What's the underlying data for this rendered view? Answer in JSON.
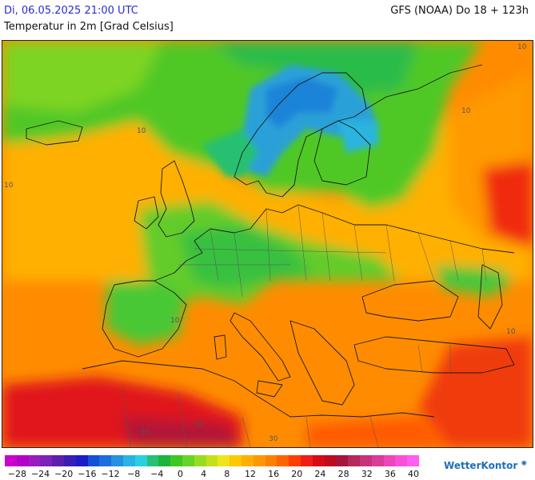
{
  "header": {
    "date": "Di, 06.05.2025 21:00 UTC",
    "model": "GFS (NOAA) Do 18 + 123h",
    "parameter": "Temperatur in 2m [Grad Celsius]"
  },
  "map": {
    "isotherm_labels": [
      "10",
      "10",
      "10",
      "10",
      "10",
      "10",
      "30",
      "30",
      "30"
    ]
  },
  "legend": {
    "colors": [
      "#cc00cc",
      "#b400c8",
      "#9a1cc0",
      "#7d22b8",
      "#5c20b0",
      "#3a1fb4",
      "#1a1ec8",
      "#1450d8",
      "#1a6ee0",
      "#2790e0",
      "#2ab4e4",
      "#2ad0e0",
      "#28c078",
      "#1eb43c",
      "#3cc820",
      "#68d428",
      "#98dc22",
      "#c4e01c",
      "#f0e41a",
      "#ffc800",
      "#ffb000",
      "#ff9800",
      "#ff8000",
      "#ff6400",
      "#ff4000",
      "#f01e14",
      "#d80a14",
      "#c00a1e",
      "#a8143c",
      "#b4285a",
      "#c8327a",
      "#dc3c98",
      "#ee46b8",
      "#fa50d8",
      "#ff5ef0"
    ],
    "labels": [
      "−28",
      "−24",
      "−20",
      "−16",
      "−12",
      "−8",
      "−4",
      "0",
      "4",
      "8",
      "12",
      "16",
      "20",
      "24",
      "28",
      "32",
      "36",
      "40"
    ]
  },
  "branding": {
    "name": "WetterKontor",
    "icon": "sun-dots-icon"
  }
}
